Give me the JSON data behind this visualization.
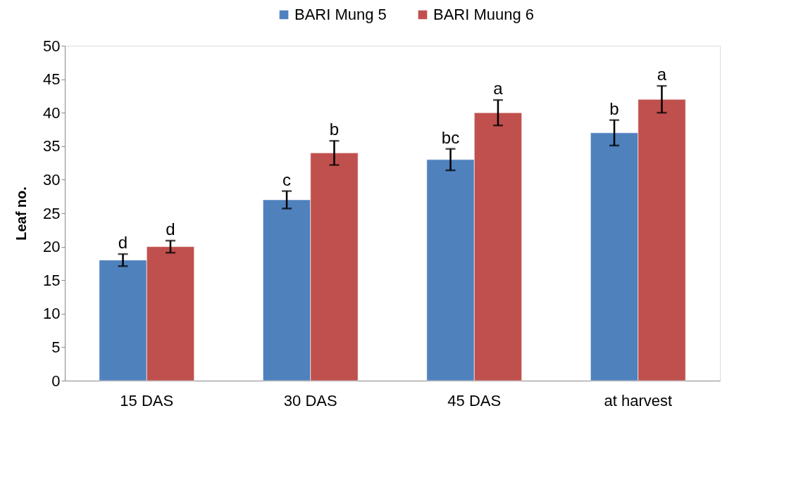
{
  "chart_data": {
    "type": "bar",
    "ylabel": "Leaf no.",
    "categories": [
      "15 DAS",
      "30 DAS",
      "45 DAS",
      "at harvest"
    ],
    "series": [
      {
        "name": "BARI Mung 5",
        "color": "#4f81bd",
        "values": [
          18,
          27,
          33,
          37
        ],
        "errors": [
          0.9,
          1.3,
          1.6,
          1.9
        ],
        "value_labels": [
          "d",
          "c",
          "bc",
          "b"
        ]
      },
      {
        "name": "BARI Muung 6",
        "color": "#c0504d",
        "values": [
          20,
          34,
          40,
          42
        ],
        "errors": [
          0.9,
          1.8,
          1.9,
          2.0
        ],
        "value_labels": [
          "d",
          "b",
          "a",
          "a"
        ]
      }
    ],
    "ylim": [
      0,
      50
    ],
    "yticks": [
      0,
      5,
      10,
      15,
      20,
      25,
      30,
      35,
      40,
      45,
      50
    ],
    "grid": false,
    "legend": "top"
  }
}
